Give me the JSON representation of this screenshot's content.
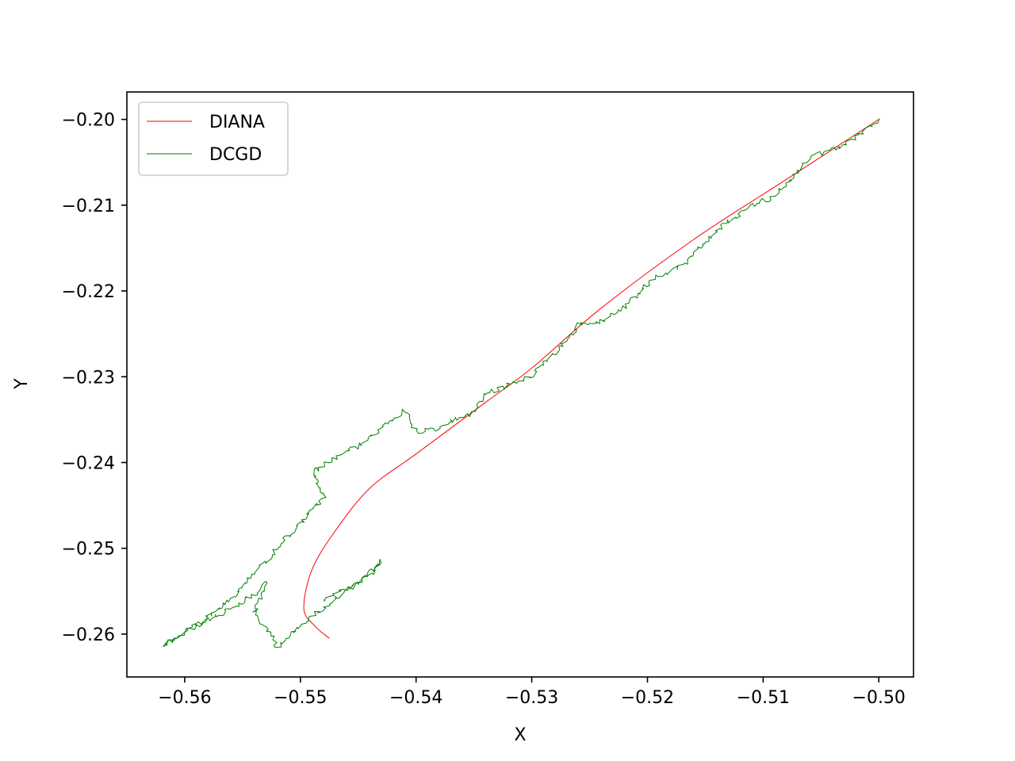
{
  "chart_data": {
    "type": "line",
    "title": "",
    "xlabel": "X",
    "ylabel": "Y",
    "xlim": [
      -0.565,
      -0.497
    ],
    "ylim": [
      -0.265,
      -0.1968
    ],
    "xticks": [
      -0.56,
      -0.55,
      -0.54,
      -0.53,
      -0.52,
      -0.51,
      -0.5
    ],
    "xtick_labels": [
      "−0.56",
      "−0.55",
      "−0.54",
      "−0.53",
      "−0.52",
      "−0.51",
      "−0.50"
    ],
    "yticks": [
      -0.2,
      -0.21,
      -0.22,
      -0.23,
      -0.24,
      -0.25,
      -0.26
    ],
    "ytick_labels": [
      "−0.20",
      "−0.21",
      "−0.22",
      "−0.23",
      "−0.24",
      "−0.25",
      "−0.26"
    ],
    "grid": false,
    "legend_position": "top-left",
    "series": [
      {
        "name": "DIANA",
        "color": "#ff0000",
        "noisy": false,
        "points": [
          [
            -0.5,
            -0.2
          ],
          [
            -0.508,
            -0.207
          ],
          [
            -0.516,
            -0.214
          ],
          [
            -0.524,
            -0.222
          ],
          [
            -0.53,
            -0.229
          ],
          [
            -0.534,
            -0.233
          ],
          [
            -0.54,
            -0.239
          ],
          [
            -0.544,
            -0.243
          ],
          [
            -0.547,
            -0.248
          ],
          [
            -0.549,
            -0.2525
          ],
          [
            -0.5497,
            -0.257
          ],
          [
            -0.5488,
            -0.259
          ],
          [
            -0.5475,
            -0.2605
          ]
        ]
      },
      {
        "name": "DCGD",
        "color": "#008000",
        "noisy": true,
        "points": [
          [
            -0.5,
            -0.2
          ],
          [
            -0.503,
            -0.203
          ],
          [
            -0.506,
            -0.2045
          ],
          [
            -0.509,
            -0.209
          ],
          [
            -0.511,
            -0.21
          ],
          [
            -0.514,
            -0.213
          ],
          [
            -0.517,
            -0.217
          ],
          [
            -0.5195,
            -0.2185
          ],
          [
            -0.522,
            -0.222
          ],
          [
            -0.524,
            -0.2235
          ],
          [
            -0.526,
            -0.224
          ],
          [
            -0.5275,
            -0.2265
          ],
          [
            -0.53,
            -0.23
          ],
          [
            -0.532,
            -0.231
          ],
          [
            -0.534,
            -0.232
          ],
          [
            -0.535,
            -0.234
          ],
          [
            -0.538,
            -0.236
          ],
          [
            -0.54,
            -0.2365
          ],
          [
            -0.541,
            -0.234
          ],
          [
            -0.543,
            -0.236
          ],
          [
            -0.545,
            -0.238
          ],
          [
            -0.547,
            -0.2395
          ],
          [
            -0.549,
            -0.241
          ],
          [
            -0.548,
            -0.244
          ],
          [
            -0.55,
            -0.247
          ],
          [
            -0.552,
            -0.25
          ],
          [
            -0.554,
            -0.253
          ],
          [
            -0.556,
            -0.256
          ],
          [
            -0.558,
            -0.258
          ],
          [
            -0.56,
            -0.26
          ],
          [
            -0.562,
            -0.2615
          ],
          [
            -0.559,
            -0.259
          ],
          [
            -0.555,
            -0.2565
          ],
          [
            -0.553,
            -0.254
          ],
          [
            -0.554,
            -0.2575
          ],
          [
            -0.5525,
            -0.26
          ],
          [
            -0.552,
            -0.2615
          ],
          [
            -0.55,
            -0.259
          ],
          [
            -0.548,
            -0.257
          ],
          [
            -0.546,
            -0.255
          ],
          [
            -0.544,
            -0.253
          ],
          [
            -0.543,
            -0.2515
          ],
          [
            -0.545,
            -0.254
          ],
          [
            -0.548,
            -0.256
          ]
        ]
      }
    ]
  }
}
